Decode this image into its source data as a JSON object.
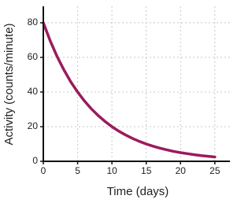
{
  "chart_data": {
    "type": "line",
    "x_label": "Time (days)",
    "y_label": "Activity (counts/minute)",
    "x": [
      0,
      1,
      2,
      3,
      4,
      5,
      6,
      7,
      8,
      9,
      10,
      11,
      12,
      13,
      14,
      15,
      16,
      17,
      18,
      19,
      20,
      21,
      22,
      23,
      24,
      25
    ],
    "series": [
      {
        "color": "#9b1b5e",
        "values": [
          80,
          69.6,
          60.6,
          52.8,
          45.9,
          40,
          34.8,
          30.3,
          26.4,
          23,
          20,
          17.4,
          15.2,
          13.2,
          11.5,
          10,
          8.7,
          7.6,
          6.6,
          5.7,
          5,
          4.4,
          3.8,
          3.3,
          2.9,
          2.5
        ]
      }
    ],
    "xlim": [
      0,
      27.2
    ],
    "xticks": [
      0,
      5,
      10,
      15,
      20,
      25
    ],
    "ylim": [
      0,
      89.5
    ],
    "yticks": [
      0,
      20,
      40,
      60,
      80
    ],
    "grid": true
  }
}
